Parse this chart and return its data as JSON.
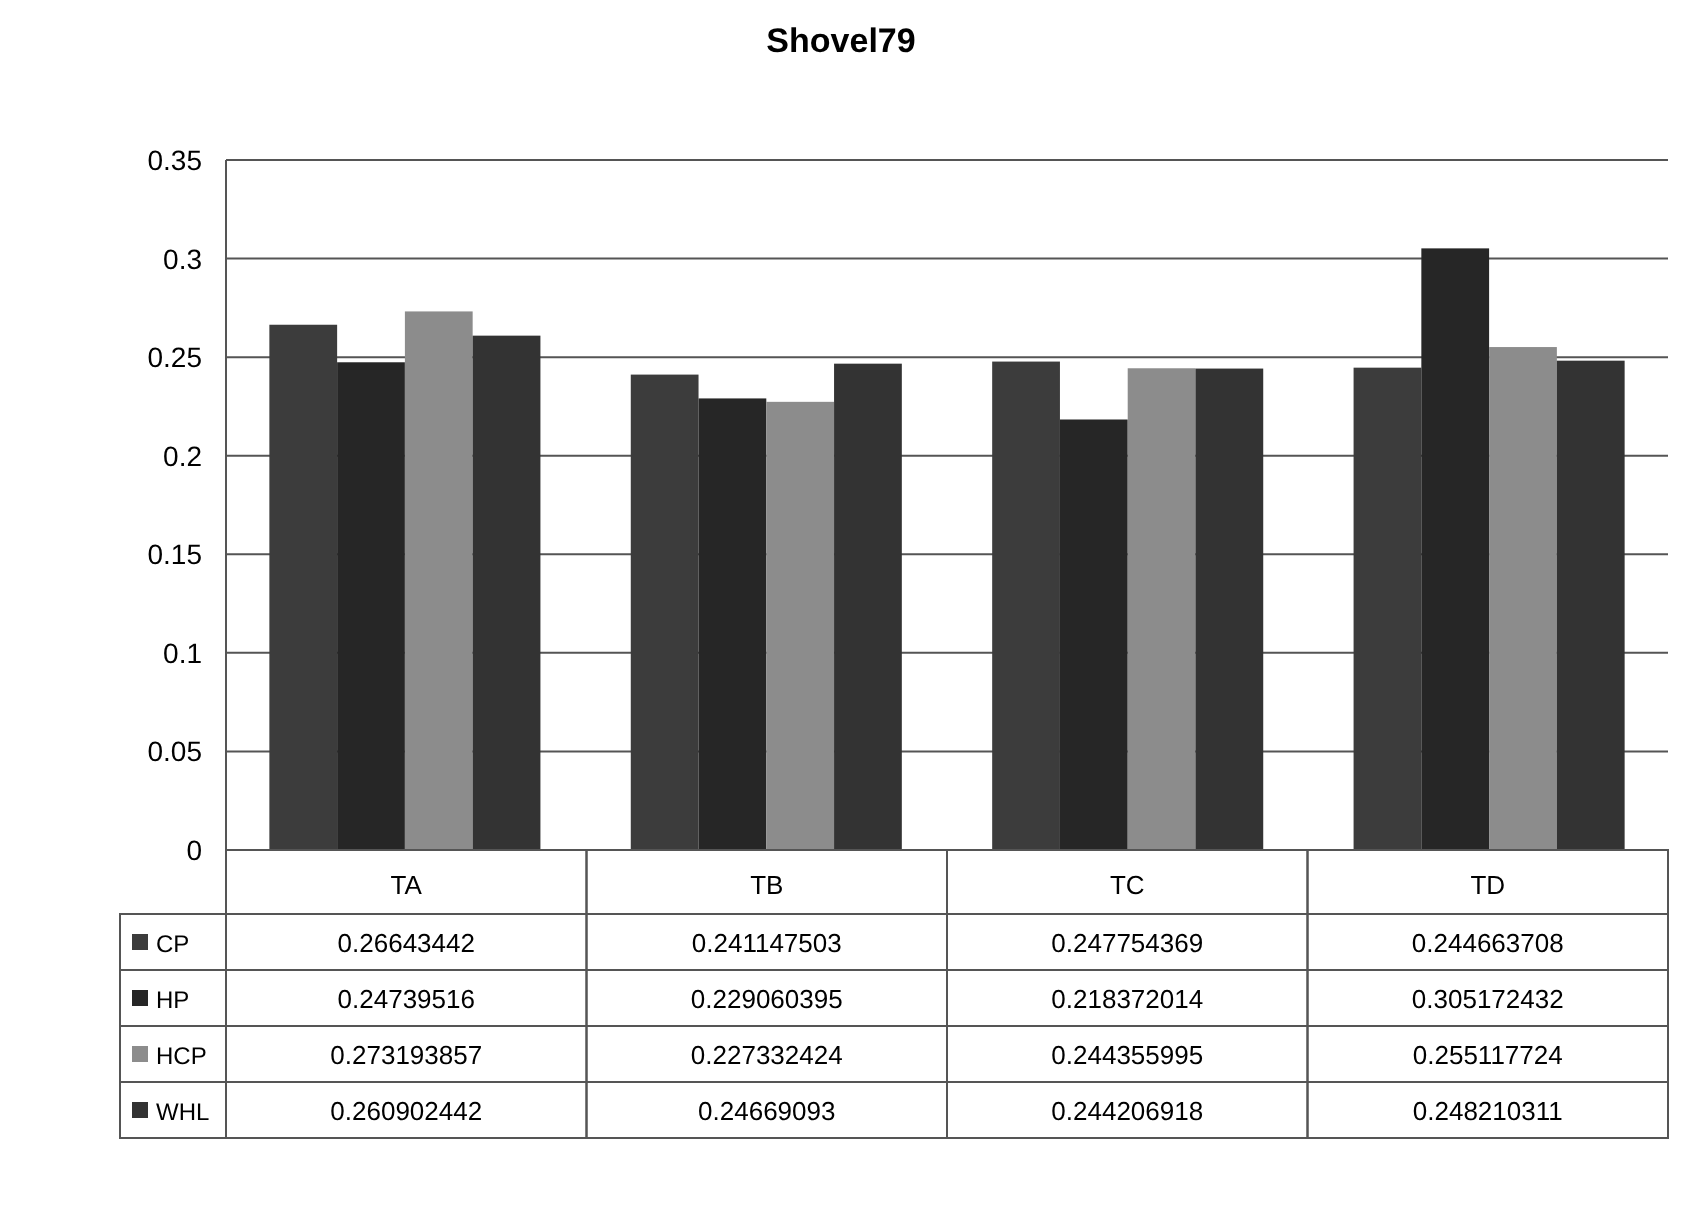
{
  "chart_data": {
    "type": "bar",
    "title": "Shovel79",
    "categories": [
      "TA",
      "TB",
      "TC",
      "TD"
    ],
    "series": [
      {
        "name": "CP",
        "color": "#3c3c3c",
        "values": [
          0.26643442,
          0.241147503,
          0.247754369,
          0.244663708
        ]
      },
      {
        "name": "HP",
        "color": "#262626",
        "values": [
          0.24739516,
          0.229060395,
          0.218372014,
          0.305172432
        ]
      },
      {
        "name": "HCP",
        "color": "#8c8c8c",
        "values": [
          0.273193857,
          0.227332424,
          0.244355995,
          0.255117724
        ]
      },
      {
        "name": "WHL",
        "color": "#333333",
        "values": [
          0.260902442,
          0.24669093,
          0.244206918,
          0.248210311
        ]
      }
    ],
    "ylim": [
      0,
      0.35
    ],
    "yticks": [
      0,
      0.05,
      0.1,
      0.15,
      0.2,
      0.25,
      0.3,
      0.35
    ],
    "grid": "y",
    "legend": "bottom",
    "data_labels": true
  }
}
